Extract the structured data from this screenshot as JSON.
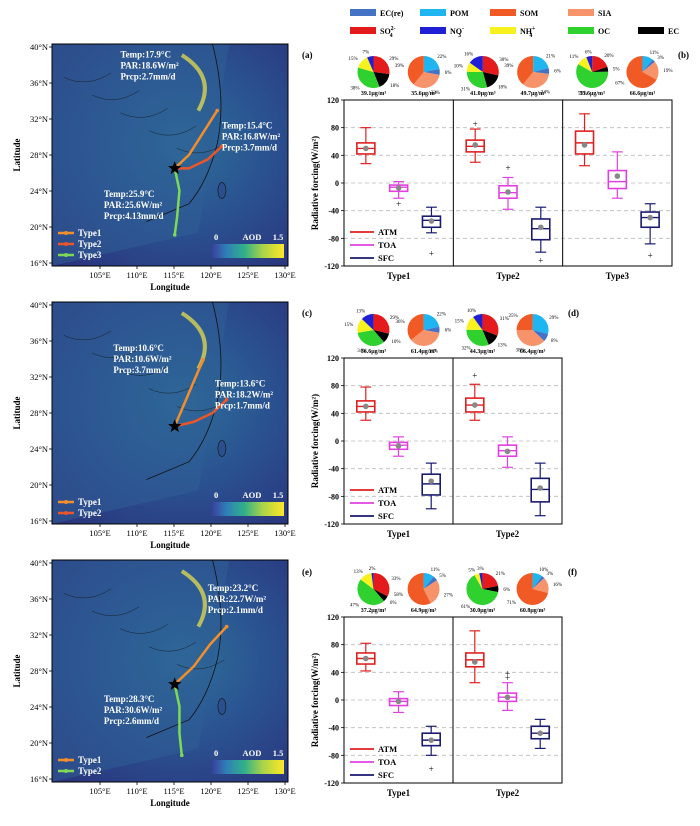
{
  "legend_top": {
    "row1": [
      {
        "label": "EC(re)",
        "color": "#4472c4"
      },
      {
        "label": "POM",
        "color": "#1fb5f0"
      },
      {
        "label": "SOM",
        "color": "#f15a24"
      },
      {
        "label": "SIA",
        "color": "#f7936a"
      }
    ],
    "row2": [
      {
        "label": "SO",
        "sub": "4",
        "sup": "2-",
        "color": "#e41a1c"
      },
      {
        "label": "NO",
        "sub": "3",
        "sup": "-",
        "color": "#1f1fd6"
      },
      {
        "label": "NH",
        "sub": "4",
        "sup": "+",
        "color": "#f7f21e"
      },
      {
        "label": "OC",
        "color": "#2fd12f"
      },
      {
        "label": "EC",
        "color": "#000000"
      }
    ]
  },
  "maps": [
    {
      "lat_ticks": [
        "40°N",
        "36°N",
        "32°N",
        "28°N",
        "24°N",
        "20°N",
        "16°N"
      ],
      "lon_ticks": [
        "105°E",
        "110°E",
        "115°E",
        "120°E",
        "125°E",
        "130°E"
      ],
      "xlabel": "Longitude",
      "ylabel": "Latitude",
      "colorbar": {
        "min": "0",
        "max": "1.5",
        "label": "AOD"
      },
      "annotations": [
        {
          "lines": [
            "Temp:17.9°C",
            "PAR:18.6W/m²",
            "Prcp:2.7mm/d"
          ]
        },
        {
          "lines": [
            "Temp:15.4°C",
            "PAR:16.8W/m²",
            "Prcp:3.7mm/d"
          ]
        },
        {
          "lines": [
            "Temp:25.9°C",
            "PAR:25.6W/m²",
            "Prcp:4.13mm/d"
          ]
        }
      ],
      "legend": [
        {
          "label": "Type1",
          "color": "#f28e2b"
        },
        {
          "label": "Type2",
          "color": "#e8562a"
        },
        {
          "label": "Type3",
          "color": "#7ed957"
        }
      ]
    },
    {
      "lat_ticks": [
        "40°N",
        "36°N",
        "32°N",
        "28°N",
        "24°N",
        "20°N",
        "16°N"
      ],
      "lon_ticks": [
        "105°E",
        "110°E",
        "115°E",
        "120°E",
        "125°E",
        "130°E"
      ],
      "xlabel": "Longitude",
      "ylabel": "Latitude",
      "colorbar": {
        "min": "0",
        "max": "1.5",
        "label": "AOD"
      },
      "annotations": [
        {
          "lines": [
            "Temp:10.6°C",
            "PAR:10.6W/m²",
            "Prcp:3.7mm/d"
          ]
        },
        {
          "lines": [
            "Temp:13.6°C",
            "PAR:18.2W/m²",
            "Prcp:1.7mm/d"
          ]
        }
      ],
      "legend": [
        {
          "label": "Type1",
          "color": "#f28e2b"
        },
        {
          "label": "Type2",
          "color": "#e8562a"
        }
      ]
    },
    {
      "lat_ticks": [
        "40°N",
        "36°N",
        "32°N",
        "28°N",
        "24°N",
        "20°N",
        "16°N"
      ],
      "lon_ticks": [
        "105°E",
        "110°E",
        "115°E",
        "120°E",
        "125°E",
        "130°E"
      ],
      "xlabel": "Longitude",
      "ylabel": "Latitude",
      "colorbar": {
        "min": "0",
        "max": "1.5",
        "label": "AOD"
      },
      "annotations": [
        {
          "lines": [
            "Temp:23.2°C",
            "PAR:22.7W/m²",
            "Prcp:2.1mm/d"
          ]
        },
        {
          "lines": [
            "Temp:28.3°C",
            "PAR:30.6W/m²",
            "Prcp:2.6mm/d"
          ]
        }
      ],
      "legend": [
        {
          "label": "Type1",
          "color": "#f28e2b"
        },
        {
          "label": "Type2",
          "color": "#7ed957"
        }
      ]
    }
  ],
  "chart_data": [
    {
      "type": "box",
      "panel_labels": [
        "(a)",
        "(b)"
      ],
      "ylabel": "Radiative forcing(W/m²)",
      "ylim": [
        -120,
        120
      ],
      "yticks": [
        "120",
        "80",
        "40",
        "0",
        "-40",
        "-80",
        "-120"
      ],
      "legend": [
        {
          "label": "ATM",
          "color": "#e02020"
        },
        {
          "label": "TOA",
          "color": "#e040e0"
        },
        {
          "label": "SFC",
          "color": "#1a1a6e"
        }
      ],
      "groups": [
        {
          "category": "Type1",
          "pies": [
            {
              "caption": "39.1μg/m³",
              "kind": "species",
              "labels": [
                "29%",
                "18%",
                "38%",
                "15%",
                "7%"
              ]
            },
            {
              "caption": "35.6μg/m³",
              "kind": "source",
              "labels": [
                "22%",
                "6%",
                "33%",
                "39%"
              ]
            }
          ],
          "boxes": [
            {
              "series": "ATM",
              "min": 28,
              "q1": 42,
              "median": 50,
              "q3": 58,
              "max": 80,
              "mean": 50,
              "outliers": []
            },
            {
              "series": "TOA",
              "min": -22,
              "q1": -12,
              "median": -6,
              "q3": -3,
              "max": 2,
              "mean": -7,
              "outliers": [
                -30
              ]
            },
            {
              "series": "SFC",
              "min": -72,
              "q1": -64,
              "median": -54,
              "q3": -48,
              "max": -35,
              "mean": -55,
              "outliers": [
                -102
              ]
            }
          ]
        },
        {
          "category": "Type2",
          "pies": [
            {
              "caption": "41.0μg/m³",
              "kind": "species",
              "labels": [
                "30%",
                "18%",
                "31%",
                "10%",
                "16%"
              ]
            },
            {
              "caption": "49.7μg/m³",
              "kind": "source",
              "labels": [
                "21%",
                "6%",
                "34%",
                "39%"
              ]
            }
          ],
          "boxes": [
            {
              "series": "ATM",
              "min": 30,
              "q1": 45,
              "median": 53,
              "q3": 62,
              "max": 78,
              "mean": 55,
              "outliers": [
                85
              ]
            },
            {
              "series": "TOA",
              "min": -38,
              "q1": -22,
              "median": -14,
              "q3": -4,
              "max": 8,
              "mean": -13,
              "outliers": [
                22
              ]
            },
            {
              "series": "SFC",
              "min": -100,
              "q1": -82,
              "median": -66,
              "q3": -52,
              "max": -35,
              "mean": -64,
              "outliers": [
                -112
              ]
            }
          ]
        },
        {
          "category": "Type3",
          "pies": [
            {
              "caption": "33.6μg/m³",
              "kind": "species",
              "labels": [
                "20%",
                "5%",
                "59%",
                "11%",
                "6%"
              ]
            },
            {
              "caption": "66.6μg/m³",
              "kind": "source",
              "labels": [
                "11%",
                "3%",
                "19%",
                "67%"
              ]
            }
          ],
          "boxes": [
            {
              "series": "ATM",
              "min": 25,
              "q1": 42,
              "median": 58,
              "q3": 75,
              "max": 100,
              "mean": 55,
              "outliers": []
            },
            {
              "series": "TOA",
              "min": -22,
              "q1": -8,
              "median": 2,
              "q3": 18,
              "max": 45,
              "mean": 10,
              "outliers": []
            },
            {
              "series": "SFC",
              "min": -88,
              "q1": -64,
              "median": -50,
              "q3": -42,
              "max": -30,
              "mean": -50,
              "outliers": [
                -105
              ]
            }
          ]
        }
      ]
    },
    {
      "type": "box",
      "panel_labels": [
        "(c)",
        "(d)"
      ],
      "ylabel": "Radiative forcing(W/m²)",
      "ylim": [
        -120,
        120
      ],
      "yticks": [
        "120",
        "80",
        "40",
        "0",
        "-40",
        "-80",
        "-120"
      ],
      "legend": [
        {
          "label": "ATM",
          "color": "#e02020"
        },
        {
          "label": "TOA",
          "color": "#e040e0"
        },
        {
          "label": "SFC",
          "color": "#1a1a6e"
        }
      ],
      "groups": [
        {
          "category": "Type1",
          "pies": [
            {
              "caption": "36.6μg/m³",
              "kind": "species",
              "labels": [
                "29%",
                "10%",
                "34%",
                "15%",
                "13%"
              ]
            },
            {
              "caption": "61.4μg/m³",
              "kind": "source",
              "labels": [
                "22%",
                "6%",
                "37%",
                "36%"
              ]
            }
          ],
          "boxes": [
            {
              "series": "ATM",
              "min": 30,
              "q1": 42,
              "median": 50,
              "q3": 58,
              "max": 78,
              "mean": 50,
              "outliers": []
            },
            {
              "series": "TOA",
              "min": -22,
              "q1": -12,
              "median": -6,
              "q3": -2,
              "max": 6,
              "mean": -7,
              "outliers": []
            },
            {
              "series": "SFC",
              "min": -98,
              "q1": -78,
              "median": -62,
              "q3": -48,
              "max": -32,
              "mean": -58,
              "outliers": []
            }
          ]
        },
        {
          "category": "Type2",
          "pies": [
            {
              "caption": "44.3μg/m³",
              "kind": "species",
              "labels": [
                "31%",
                "13%",
                "32%",
                "15%",
                "10%"
              ]
            },
            {
              "caption": "66.4μg/m³",
              "kind": "source",
              "labels": [
                "29%",
                "8%",
                "38%",
                "25%"
              ]
            }
          ],
          "boxes": [
            {
              "series": "ATM",
              "min": 30,
              "q1": 42,
              "median": 52,
              "q3": 62,
              "max": 82,
              "mean": 52,
              "outliers": [
                95
              ]
            },
            {
              "series": "TOA",
              "min": -38,
              "q1": -22,
              "median": -14,
              "q3": -6,
              "max": 6,
              "mean": -15,
              "outliers": []
            },
            {
              "series": "SFC",
              "min": -108,
              "q1": -88,
              "median": -70,
              "q3": -54,
              "max": -32,
              "mean": -68,
              "outliers": []
            }
          ]
        }
      ]
    },
    {
      "type": "box",
      "panel_labels": [
        "(e)",
        "(f)"
      ],
      "ylabel": "Radiative forcing(W/m²)",
      "ylim": [
        -120,
        120
      ],
      "yticks": [
        "120",
        "80",
        "40",
        "0",
        "-40",
        "-80",
        "-120"
      ],
      "legend": [
        {
          "label": "ATM",
          "color": "#e02020"
        },
        {
          "label": "TOA",
          "color": "#e040e0"
        },
        {
          "label": "SFC",
          "color": "#1a1a6e"
        }
      ],
      "groups": [
        {
          "category": "Type1",
          "pies": [
            {
              "caption": "37.2μg/m³",
              "kind": "species",
              "labels": [
                "33%",
                "6%",
                "47%",
                "13%",
                "2%"
              ]
            },
            {
              "caption": "64.9μg/m³",
              "kind": "source",
              "labels": [
                "11%",
                "5%",
                "27%",
                "58%"
              ]
            }
          ],
          "boxes": [
            {
              "series": "ATM",
              "min": 42,
              "q1": 52,
              "median": 60,
              "q3": 68,
              "max": 82,
              "mean": 60,
              "outliers": []
            },
            {
              "series": "TOA",
              "min": -18,
              "q1": -8,
              "median": -2,
              "q3": 2,
              "max": 12,
              "mean": -2,
              "outliers": []
            },
            {
              "series": "SFC",
              "min": -80,
              "q1": -66,
              "median": -58,
              "q3": -48,
              "max": -38,
              "mean": -58,
              "outliers": [
                -100
              ]
            }
          ]
        },
        {
          "category": "Type2",
          "pies": [
            {
              "caption": "30.0μg/m³",
              "kind": "species",
              "labels": [
                "21%",
                "6%",
                "61%",
                "5%",
                "3%"
              ]
            },
            {
              "caption": "60.8μg/m³",
              "kind": "source",
              "labels": [
                "10%",
                "3%",
                "16%",
                "71%"
              ]
            }
          ],
          "boxes": [
            {
              "series": "ATM",
              "min": 25,
              "q1": 48,
              "median": 58,
              "q3": 68,
              "max": 100,
              "mean": 55,
              "outliers": []
            },
            {
              "series": "TOA",
              "min": -15,
              "q1": -2,
              "median": 4,
              "q3": 10,
              "max": 25,
              "mean": 4,
              "outliers": [
                32,
                38
              ]
            },
            {
              "series": "SFC",
              "min": -70,
              "q1": -56,
              "median": -48,
              "q3": -38,
              "max": -28,
              "mean": -48,
              "outliers": []
            }
          ]
        }
      ]
    }
  ]
}
